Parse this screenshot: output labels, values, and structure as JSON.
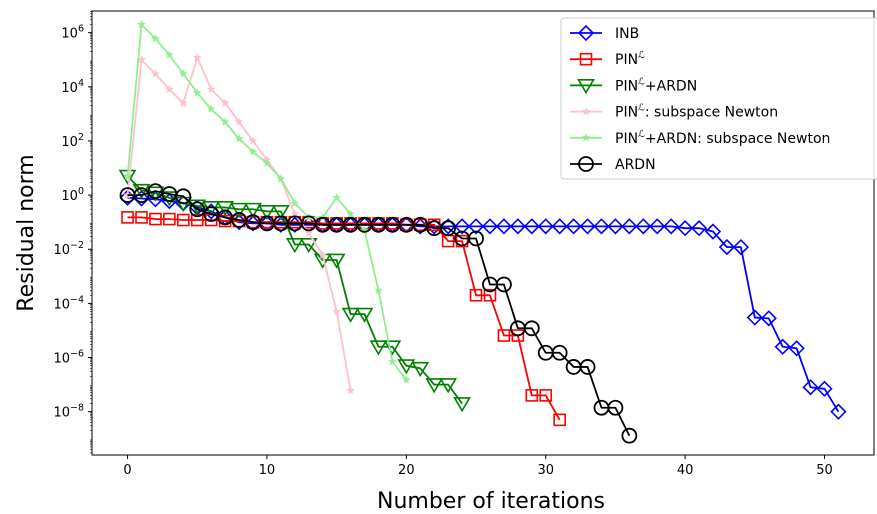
{
  "chart_data": {
    "type": "line",
    "xlabel": "Number of iterations",
    "ylabel": "Residual norm",
    "xlim": [
      -2.55,
      53.55
    ],
    "ylim": [
      -9.6,
      6.8
    ],
    "yscale": "log",
    "xticks": [
      0,
      10,
      20,
      30,
      40,
      50
    ],
    "yticks": [
      {
        "exp": 6,
        "base": "10",
        "sup": "6"
      },
      {
        "exp": 4,
        "base": "10",
        "sup": "4"
      },
      {
        "exp": 2,
        "base": "10",
        "sup": "2"
      },
      {
        "exp": 0,
        "base": "10",
        "sup": "0"
      },
      {
        "exp": -2,
        "base": "10",
        "sup": "−2"
      },
      {
        "exp": -4,
        "base": "10",
        "sup": "−4"
      },
      {
        "exp": -6,
        "base": "10",
        "sup": "−6"
      },
      {
        "exp": -8,
        "base": "10",
        "sup": "−8"
      }
    ],
    "grid": false,
    "legend_position": "upper right",
    "series": [
      {
        "name": "INB",
        "color": "#0000ff",
        "marker": "diamond",
        "y": [
          0.8,
          0.75,
          0.7,
          0.6,
          0.5,
          0.35,
          0.25,
          0.15,
          0.1,
          0.09,
          0.09,
          0.08,
          0.08,
          0.08,
          0.08,
          0.08,
          0.08,
          0.08,
          0.08,
          0.08,
          0.08,
          0.07,
          0.07,
          0.07,
          0.07,
          0.07,
          0.07,
          0.07,
          0.07,
          0.07,
          0.07,
          0.07,
          0.07,
          0.07,
          0.07,
          0.07,
          0.07,
          0.07,
          0.07,
          0.07,
          0.06,
          0.06,
          0.045,
          0.012,
          0.012,
          3e-05,
          2.8e-05,
          2.5e-06,
          2.2e-06,
          8e-08,
          7e-08,
          1e-08
        ]
      },
      {
        "name": "PIN",
        "name_sup": "ℒ",
        "color": "#ff0000",
        "marker": "square",
        "y": [
          0.15,
          0.15,
          0.13,
          0.13,
          0.12,
          0.12,
          0.12,
          0.11,
          0.11,
          0.1,
          0.1,
          0.1,
          0.1,
          0.1,
          0.09,
          0.09,
          0.09,
          0.09,
          0.09,
          0.09,
          0.08,
          0.08,
          0.08,
          0.02,
          0.02,
          0.0002,
          0.0002,
          6.5e-06,
          6.5e-06,
          4e-08,
          4e-08,
          5e-09
        ]
      },
      {
        "name": "PIN",
        "name_sup": "ℒ",
        "name_suffix": "+ARDN",
        "color": "#008000",
        "marker": "triangle_down",
        "y": [
          5,
          1.5,
          1.2,
          0.8,
          0.5,
          0.4,
          0.35,
          0.35,
          0.3,
          0.3,
          0.25,
          0.25,
          0.015,
          0.015,
          0.004,
          0.004,
          4e-05,
          4e-05,
          2.5e-06,
          2.5e-06,
          5e-07,
          4e-07,
          1e-07,
          1e-07,
          2e-08
        ]
      },
      {
        "name": "PIN",
        "name_sup": "ℒ",
        "name_suffix": ": subspace Newton",
        "color": "#ffc0cb",
        "marker": "star",
        "y": [
          1,
          100000,
          30000,
          8000,
          2500,
          120000,
          8000,
          2500,
          500,
          100,
          20,
          4,
          0.2,
          0.04,
          0.006,
          5e-05,
          6e-08
        ]
      },
      {
        "name": "PIN",
        "name_sup": "ℒ",
        "name_suffix": "+ARDN: subspace Newton",
        "color": "#90ee90",
        "marker": "star",
        "y": [
          5,
          2000000,
          600000,
          150000,
          30000,
          6000,
          1500,
          500,
          120,
          40,
          15,
          4,
          0.5,
          0.15,
          0.15,
          0.8,
          0.2,
          0.05,
          0.0003,
          7e-07,
          1.5e-07
        ]
      },
      {
        "name": "ARDN",
        "color": "#000000",
        "marker": "circle",
        "y": [
          1,
          1,
          1.4,
          1.1,
          0.9,
          0.3,
          0.2,
          0.15,
          0.12,
          0.1,
          0.09,
          0.09,
          0.09,
          0.09,
          0.08,
          0.08,
          0.08,
          0.08,
          0.08,
          0.08,
          0.08,
          0.08,
          0.06,
          0.06,
          0.025,
          0.025,
          0.0005,
          0.0005,
          1.2e-05,
          1.2e-05,
          1.5e-06,
          1.5e-06,
          4.5e-07,
          4.5e-07,
          1.4e-08,
          1.4e-08,
          1.3e-09
        ]
      }
    ]
  }
}
